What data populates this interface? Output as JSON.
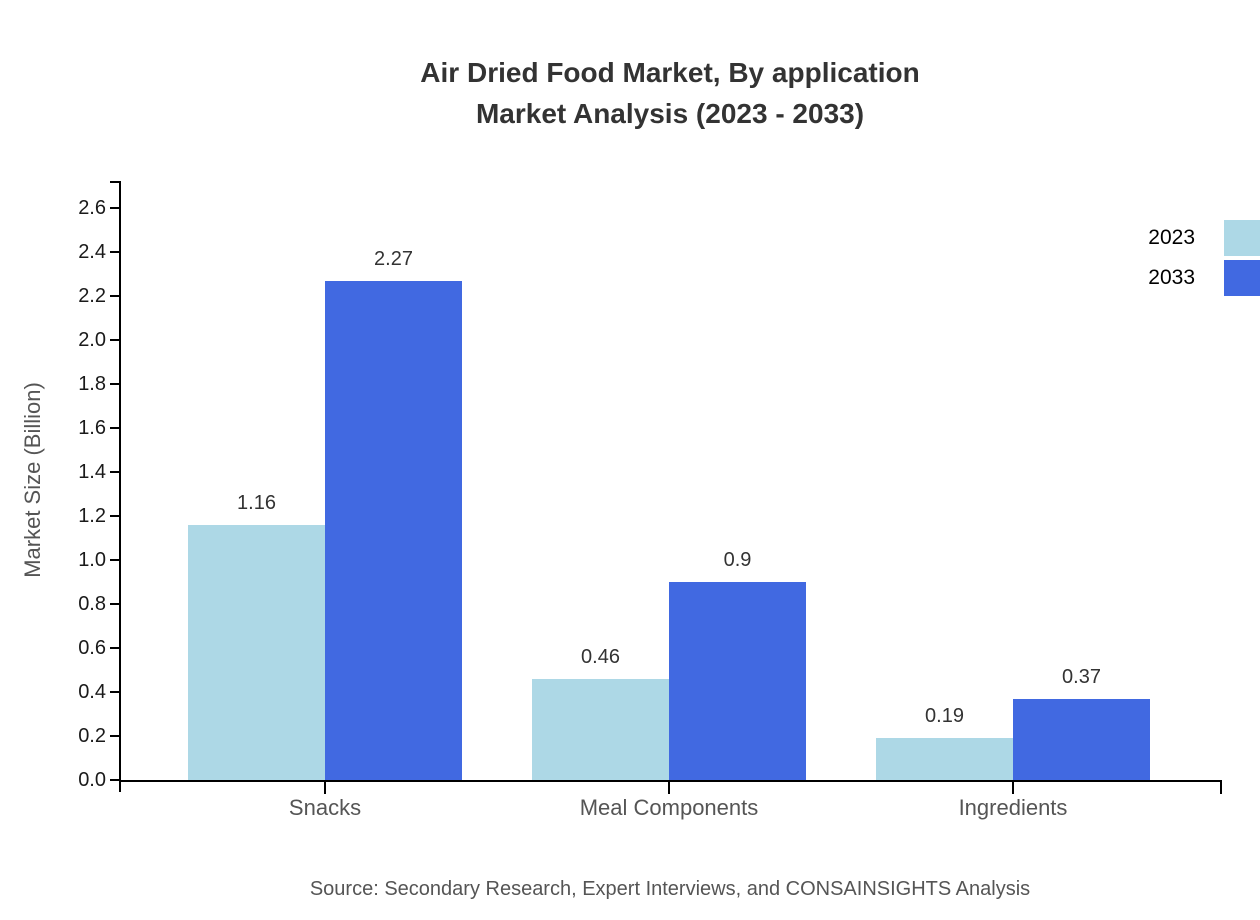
{
  "title": {
    "line1": "Air Dried Food Market, By application",
    "line2": "Market Analysis (2023 - 2033)"
  },
  "chart_data": {
    "type": "bar",
    "categories": [
      "Snacks",
      "Meal Components",
      "Ingredients"
    ],
    "series": [
      {
        "name": "2023",
        "color": "#ADD8E6",
        "values": [
          1.16,
          0.46,
          0.19
        ]
      },
      {
        "name": "2033",
        "color": "#4169E1",
        "values": [
          2.27,
          0.9,
          0.37
        ]
      }
    ],
    "value_labels": [
      [
        "1.16",
        "0.46",
        "0.19"
      ],
      [
        "2.27",
        "0.9",
        "0.37"
      ]
    ],
    "ylabel": "Market Size (Billion)",
    "xlabel": "",
    "ylim": [
      0,
      2.6
    ],
    "ytick_step": 0.2,
    "grid": false,
    "legend_position": "top-right",
    "legend_entries": [
      "2023",
      "2033"
    ]
  },
  "source_note": "Source: Secondary Research, Expert Interviews, and CONSAINSIGHTS Analysis",
  "colors": {
    "background": "#ffffff",
    "axis": "#000000",
    "title_text": "#333333",
    "tick_text": "#1a1a1a",
    "label_text": "#555555",
    "value_text": "#333333",
    "series_2023": "#ADD8E6",
    "series_2033": "#4169E1"
  }
}
